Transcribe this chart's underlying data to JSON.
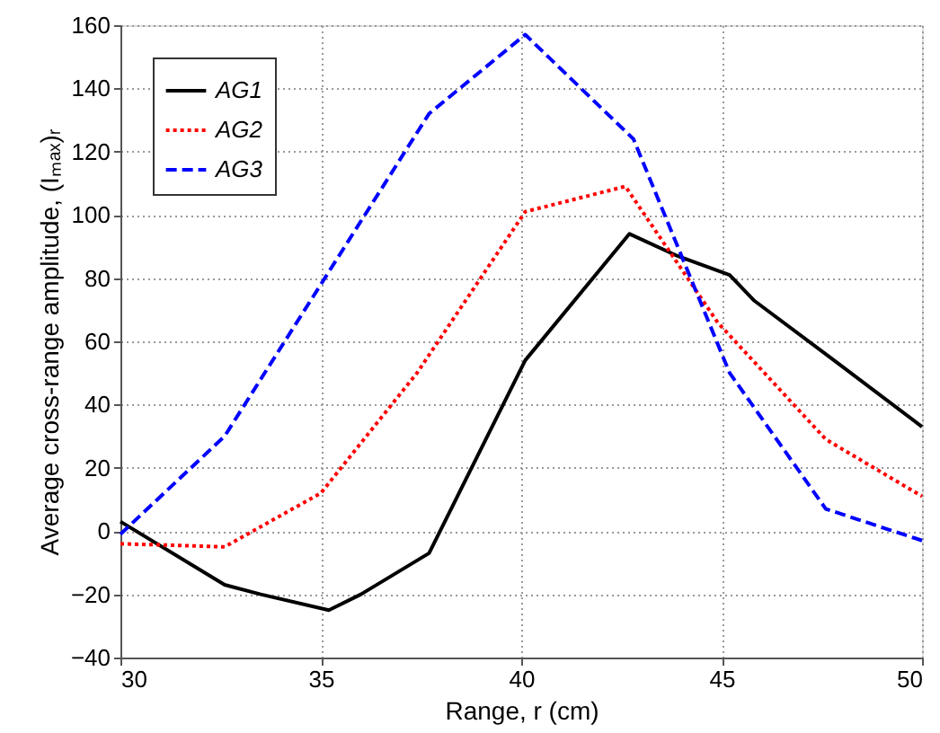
{
  "chart_data": {
    "type": "line",
    "xlabel": "Range, r (cm)",
    "ylabel": "Average cross-range amplitude, (Iₘₐₓ)ᵣ",
    "xlim": [
      30,
      50
    ],
    "xticks": [
      30,
      35,
      40,
      45,
      50
    ],
    "ylim": [
      -40,
      160
    ],
    "yticks": [
      -40,
      -20,
      0,
      20,
      40,
      60,
      80,
      100,
      120,
      140,
      160
    ],
    "grid": true,
    "legend": "top left",
    "marker": "none",
    "series": [
      {
        "name": "AG1",
        "color": "#000000",
        "line_style": "solid",
        "x": [
          30,
          32.6,
          33.5,
          35.2,
          36,
          37.7,
          40.1,
          42.7,
          43.9,
          45.2,
          45.8,
          47.7,
          50
        ],
        "values": [
          3,
          -17,
          -20,
          -25,
          -20,
          -7,
          54,
          94,
          87,
          81,
          73,
          55,
          33
        ]
      },
      {
        "name": "AG2",
        "color": "#ff0000",
        "line_style": "dotted",
        "x": [
          30,
          32.6,
          35,
          37.4,
          40.1,
          42.6,
          44.9,
          47.6,
          50
        ],
        "values": [
          -4,
          -5,
          12,
          50,
          101,
          109,
          66,
          29,
          11
        ]
      },
      {
        "name": "AG3",
        "color": "#0000ff",
        "line_style": "dashed",
        "x": [
          30,
          32.6,
          35,
          37.7,
          40.1,
          42.8,
          45.2,
          47.6,
          50
        ],
        "values": [
          -1,
          30,
          78,
          132,
          157,
          124,
          50,
          7,
          -3
        ]
      }
    ]
  }
}
